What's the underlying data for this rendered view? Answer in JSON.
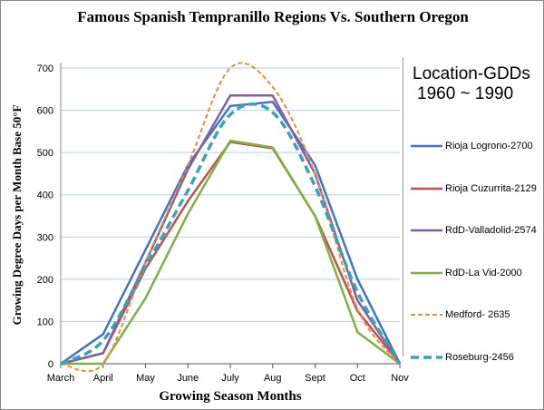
{
  "chart_data": {
    "type": "line",
    "title": "Famous Spanish Tempranillo Regions Vs. Southern Oregon",
    "xlabel": "Growing Season Months",
    "ylabel": "Growing Degree Days per Month Base 50°F",
    "categories": [
      "March",
      "April",
      "May",
      "June",
      "July",
      "Aug",
      "Sept",
      "Oct",
      "Nov"
    ],
    "ylim": [
      0,
      700
    ],
    "yticks": [
      0,
      100,
      200,
      300,
      400,
      500,
      600,
      700
    ],
    "grid": true,
    "legend_title": [
      "Location-GDDs",
      "1960 ~ 1990"
    ],
    "legend_placement": "right",
    "series": [
      {
        "name": "Rioja Logrono-2700",
        "color": "#4472C4",
        "style": "solid",
        "values": [
          0,
          70,
          270,
          470,
          610,
          620,
          470,
          200,
          0
        ]
      },
      {
        "name": "Rioja Cuzurrita-2129",
        "color": "#C0504D",
        "style": "solid",
        "values": [
          0,
          25,
          225,
          385,
          525,
          510,
          350,
          125,
          0
        ]
      },
      {
        "name": "RdD-Valladolid-2574",
        "color": "#7F5FA0",
        "style": "solid",
        "values": [
          0,
          25,
          240,
          460,
          635,
          635,
          450,
          150,
          0
        ]
      },
      {
        "name": "RdD-La Vid-2000",
        "color": "#7FAF45",
        "style": "solid",
        "values": [
          0,
          0,
          155,
          355,
          528,
          512,
          350,
          75,
          0
        ]
      },
      {
        "name": "Medford- 2635",
        "color": "#F0883A",
        "style": "dashed",
        "values": [
          0,
          0,
          240,
          470,
          700,
          655,
          450,
          130,
          0
        ]
      },
      {
        "name": "Roseburg-2456",
        "color": "#3BA0B8",
        "style": "dashed-thick",
        "values": [
          0,
          55,
          230,
          410,
          590,
          595,
          420,
          170,
          0
        ]
      }
    ]
  }
}
